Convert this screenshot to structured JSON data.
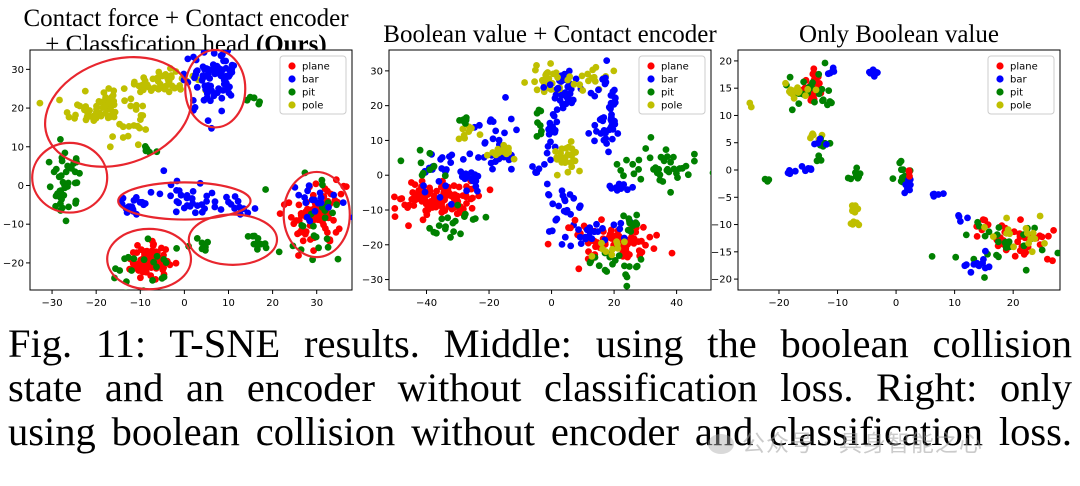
{
  "colors": {
    "plane": "#ff0000",
    "bar": "#0000ff",
    "pit": "#008000",
    "pole": "#bfbf00",
    "ellipse": "#e8262e"
  },
  "caption": {
    "lines": [
      "Fig. 11: T-SNE results. Middle: using the boolean collision",
      "state and an encoder without classification loss. Right: only",
      "using boolean collision without encoder and classification loss."
    ]
  },
  "watermark": "公众号 · 具身智能之心",
  "chart_data": [
    {
      "type": "scatter",
      "title_line1": "Contact force + Contact encoder",
      "title_line2": "+ Classfication head ",
      "title_bold": "(Ours)",
      "xlim": [
        -35,
        38
      ],
      "ylim": [
        -27,
        35
      ],
      "xticks": [
        -30,
        -20,
        -10,
        0,
        10,
        20,
        30
      ],
      "yticks": [
        -20,
        -10,
        0,
        10,
        20,
        30
      ],
      "legend": [
        "plane",
        "bar",
        "pit",
        "pole"
      ],
      "legend_position": "upper-right",
      "clusters": [
        {
          "series": "pole",
          "cx": -17,
          "cy": 20,
          "sx": 4.5,
          "sy": 3.5,
          "n": 80
        },
        {
          "series": "pole",
          "cx": -5,
          "cy": 27,
          "sx": 4,
          "sy": 1.5,
          "n": 40
        },
        {
          "series": "bar",
          "cx": 5,
          "cy": 27,
          "sx": 2.5,
          "sy": 4,
          "n": 55
        },
        {
          "series": "bar",
          "cx": 10,
          "cy": 29,
          "sx": 1.5,
          "sy": 2.5,
          "n": 25
        },
        {
          "series": "pit",
          "cx": -27,
          "cy": 0,
          "sx": 2,
          "sy": 4,
          "n": 45
        },
        {
          "series": "pit",
          "cx": 15,
          "cy": 22,
          "sx": 1,
          "sy": 0.6,
          "n": 6
        },
        {
          "series": "pit",
          "cx": -8,
          "cy": 9,
          "sx": 1.2,
          "sy": 0.6,
          "n": 6
        },
        {
          "series": "bar",
          "cx": -11,
          "cy": -5,
          "sx": 2,
          "sy": 1.5,
          "n": 20
        },
        {
          "series": "bar",
          "cx": 3,
          "cy": -3,
          "sx": 4,
          "sy": 2.5,
          "n": 35
        },
        {
          "series": "bar",
          "cx": 12,
          "cy": -5,
          "sx": 2,
          "sy": 1,
          "n": 10
        },
        {
          "series": "pit",
          "cx": 17,
          "cy": -15,
          "sx": 1.5,
          "sy": 1.2,
          "n": 12
        },
        {
          "series": "pit",
          "cx": 4,
          "cy": -15,
          "sx": 2,
          "sy": 1,
          "n": 8
        },
        {
          "series": "plane",
          "cx": -8,
          "cy": -20,
          "sx": 2.2,
          "sy": 2.2,
          "n": 80
        },
        {
          "series": "pit",
          "cx": -9,
          "cy": -21,
          "sx": 4,
          "sy": 3,
          "n": 20
        },
        {
          "series": "plane",
          "cx": 30,
          "cy": -7,
          "sx": 3.5,
          "sy": 5,
          "n": 80
        },
        {
          "series": "pit",
          "cx": 30,
          "cy": -9,
          "sx": 4,
          "sy": 6,
          "n": 25
        },
        {
          "series": "bar",
          "cx": 28,
          "cy": -3,
          "sx": 3.5,
          "sy": 2.5,
          "n": 20
        }
      ],
      "ellipses": [
        {
          "cx": -15,
          "cy": 19,
          "rx": 17,
          "ry": 13.5,
          "rot": -18
        },
        {
          "cx": 7,
          "cy": 25,
          "rx": 6.8,
          "ry": 10,
          "rot": 0
        },
        {
          "cx": -26,
          "cy": 2,
          "rx": 8.5,
          "ry": 9,
          "rot": 0
        },
        {
          "cx": 0,
          "cy": -4,
          "rx": 15,
          "ry": 4.8,
          "rot": 0
        },
        {
          "cx": -8,
          "cy": -19,
          "rx": 9.5,
          "ry": 7.8,
          "rot": 0
        },
        {
          "cx": 11,
          "cy": -14,
          "rx": 10,
          "ry": 6.5,
          "rot": 0
        },
        {
          "cx": 30,
          "cy": -7.5,
          "rx": 7.5,
          "ry": 11,
          "rot": 0
        }
      ]
    },
    {
      "type": "scatter",
      "title_line1": "Boolean value + Contact encoder",
      "xlim": [
        -52,
        51
      ],
      "ylim": [
        -33,
        36
      ],
      "xticks": [
        -40,
        -20,
        0,
        20,
        40
      ],
      "yticks": [
        -30,
        -20,
        -10,
        0,
        10,
        20,
        30
      ],
      "legend": [
        "plane",
        "bar",
        "pit",
        "pole"
      ],
      "legend_position": "upper-right",
      "clusters": [
        {
          "series": "plane",
          "cx": -35,
          "cy": -7,
          "sx": 6,
          "sy": 2.5,
          "n": 90
        },
        {
          "series": "plane",
          "cx": -42,
          "cy": -5,
          "sx": 2.5,
          "sy": 3,
          "n": 25
        },
        {
          "series": "bar",
          "cx": -30,
          "cy": 0,
          "sx": 7,
          "sy": 4,
          "n": 40
        },
        {
          "series": "bar",
          "cx": -18,
          "cy": 10,
          "sx": 3,
          "sy": 5,
          "n": 25
        },
        {
          "series": "pit",
          "cx": -35,
          "cy": -14,
          "sx": 4,
          "sy": 2,
          "n": 14
        },
        {
          "series": "pit",
          "cx": -40,
          "cy": 3,
          "sx": 4,
          "sy": 2,
          "n": 10
        },
        {
          "series": "pole",
          "cx": -15,
          "cy": 7,
          "sx": 2.5,
          "sy": 1.5,
          "n": 14
        },
        {
          "series": "pole",
          "cx": -27,
          "cy": 12,
          "sx": 2,
          "sy": 1,
          "n": 8
        },
        {
          "series": "pit",
          "cx": -28,
          "cy": 16,
          "sx": 1,
          "sy": 0.8,
          "n": 6
        },
        {
          "series": "pole",
          "cx": -2,
          "cy": 27,
          "sx": 3,
          "sy": 3,
          "n": 28
        },
        {
          "series": "bar",
          "cx": 4,
          "cy": 24,
          "sx": 4,
          "sy": 3,
          "n": 30
        },
        {
          "series": "pole",
          "cx": 10,
          "cy": 28,
          "sx": 4,
          "sy": 2,
          "n": 18
        },
        {
          "series": "bar",
          "cx": 18,
          "cy": 18,
          "sx": 2,
          "sy": 6,
          "n": 45
        },
        {
          "series": "bar",
          "cx": 0,
          "cy": 12,
          "sx": 1.2,
          "sy": 4,
          "n": 18
        },
        {
          "series": "pit",
          "cx": -4,
          "cy": 16,
          "sx": 0.8,
          "sy": 2,
          "n": 8
        },
        {
          "series": "pole",
          "cx": 5,
          "cy": 5,
          "sx": 2,
          "sy": 2,
          "n": 25
        },
        {
          "series": "pit",
          "cx": 35,
          "cy": 3,
          "sx": 7,
          "sy": 2.5,
          "n": 40
        },
        {
          "series": "bar",
          "cx": 3,
          "cy": -8,
          "sx": 3,
          "sy": 3,
          "n": 20
        },
        {
          "series": "bar",
          "cx": 20,
          "cy": -4,
          "sx": 3,
          "sy": 1,
          "n": 10
        },
        {
          "series": "plane",
          "cx": 18,
          "cy": -19,
          "sx": 8,
          "sy": 2.5,
          "n": 80
        },
        {
          "series": "bar",
          "cx": 12,
          "cy": -17,
          "sx": 6,
          "sy": 2,
          "n": 25
        },
        {
          "series": "pit",
          "cx": 20,
          "cy": -26,
          "sx": 6,
          "sy": 2,
          "n": 20
        },
        {
          "series": "pit",
          "cx": 26,
          "cy": -14,
          "sx": 3,
          "sy": 1.5,
          "n": 10
        },
        {
          "series": "pole",
          "cx": 18,
          "cy": -21,
          "sx": 4,
          "sy": 1.5,
          "n": 10
        },
        {
          "series": "bar",
          "cx": -5,
          "cy": 1,
          "sx": 1,
          "sy": 1,
          "n": 6
        },
        {
          "series": "pit",
          "cx": -25,
          "cy": -12,
          "sx": 1.5,
          "sy": 1,
          "n": 5
        }
      ]
    },
    {
      "type": "scatter",
      "title_line1": "Only Boolean value",
      "xlim": [
        -27,
        28
      ],
      "ylim": [
        -22,
        22
      ],
      "xticks": [
        -20,
        -10,
        0,
        10,
        20
      ],
      "yticks": [
        -20,
        -15,
        -10,
        -5,
        0,
        5,
        10,
        15,
        20
      ],
      "legend": [
        "plane",
        "bar",
        "pit",
        "pole"
      ],
      "legend_position": "upper-right",
      "clusters": [
        {
          "series": "plane",
          "cx": -14,
          "cy": 15.5,
          "sx": 1,
          "sy": 1.5,
          "n": 40
        },
        {
          "series": "pit",
          "cx": -15.5,
          "cy": 15,
          "sx": 1.8,
          "sy": 1.8,
          "n": 22
        },
        {
          "series": "pole",
          "cx": -17,
          "cy": 14.5,
          "sx": 1.5,
          "sy": 0.8,
          "n": 14
        },
        {
          "series": "bar",
          "cx": -4,
          "cy": 17.5,
          "sx": 0.5,
          "sy": 0.5,
          "n": 8
        },
        {
          "series": "bar",
          "cx": -11,
          "cy": 18,
          "sx": 0.8,
          "sy": 0.4,
          "n": 5
        },
        {
          "series": "pit",
          "cx": -12,
          "cy": 12,
          "sx": 1,
          "sy": 0.5,
          "n": 5
        },
        {
          "series": "pole",
          "cx": -14,
          "cy": 6,
          "sx": 1,
          "sy": 0.7,
          "n": 6
        },
        {
          "series": "pit",
          "cx": -12,
          "cy": 5,
          "sx": 0.8,
          "sy": 0.6,
          "n": 5
        },
        {
          "series": "bar",
          "cx": -13,
          "cy": 5,
          "sx": 0.5,
          "sy": 0.4,
          "n": 4
        },
        {
          "series": "pit",
          "cx": -7,
          "cy": -1,
          "sx": 0.5,
          "sy": 0.8,
          "n": 8
        },
        {
          "series": "pole",
          "cx": -7,
          "cy": -7,
          "sx": 0.3,
          "sy": 0.6,
          "n": 6
        },
        {
          "series": "pole",
          "cx": -7,
          "cy": -10,
          "sx": 0.4,
          "sy": 0.3,
          "n": 5
        },
        {
          "series": "bar",
          "cx": -18,
          "cy": -0.5,
          "sx": 0.4,
          "sy": 0.5,
          "n": 4
        },
        {
          "series": "bar",
          "cx": -15,
          "cy": 0,
          "sx": 0.5,
          "sy": 0.5,
          "n": 5
        },
        {
          "series": "pit",
          "cx": 1,
          "cy": -1,
          "sx": 0.8,
          "sy": 1,
          "n": 14
        },
        {
          "series": "bar",
          "cx": 2,
          "cy": -2,
          "sx": 0.5,
          "sy": 1,
          "n": 10
        },
        {
          "series": "plane",
          "cx": 2,
          "cy": -0.5,
          "sx": 0.3,
          "sy": 0.4,
          "n": 3
        },
        {
          "series": "bar",
          "cx": 7,
          "cy": -4.5,
          "sx": 0.7,
          "sy": 0.3,
          "n": 5
        },
        {
          "series": "bar",
          "cx": 11.5,
          "cy": -9,
          "sx": 0.6,
          "sy": 0.4,
          "n": 4
        },
        {
          "series": "plane",
          "cx": 20,
          "cy": -13,
          "sx": 3.5,
          "sy": 2,
          "n": 40
        },
        {
          "series": "pit",
          "cx": 18,
          "cy": -14,
          "sx": 4.5,
          "sy": 2.5,
          "n": 30
        },
        {
          "series": "pole",
          "cx": 22,
          "cy": -12,
          "sx": 3,
          "sy": 1.8,
          "n": 16
        },
        {
          "series": "bar",
          "cx": 14,
          "cy": -17,
          "sx": 1.5,
          "sy": 1.2,
          "n": 12
        },
        {
          "series": "pit",
          "cx": -22,
          "cy": -2,
          "sx": 0.6,
          "sy": 0.5,
          "n": 3
        },
        {
          "series": "pole",
          "cx": -25,
          "cy": 12,
          "sx": 0.3,
          "sy": 0.3,
          "n": 2
        },
        {
          "series": "pit",
          "cx": -13,
          "cy": 2,
          "sx": 0.4,
          "sy": 0.4,
          "n": 3
        }
      ]
    }
  ]
}
